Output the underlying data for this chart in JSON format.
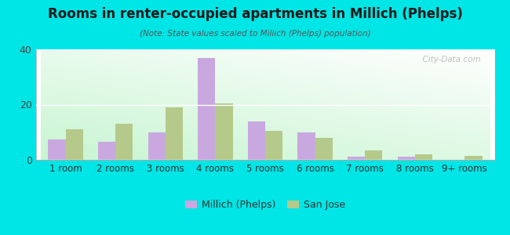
{
  "title": "Rooms in renter-occupied apartments in Millich (Phelps)",
  "subtitle": "(Note: State values scaled to Millich (Phelps) population)",
  "categories": [
    "1 room",
    "2 rooms",
    "3 rooms",
    "4 rooms",
    "5 rooms",
    "6 rooms",
    "7 rooms",
    "8 rooms",
    "9+ rooms"
  ],
  "millich_values": [
    7.5,
    6.5,
    10,
    37,
    14,
    10,
    1,
    1,
    0
  ],
  "sanjose_values": [
    11,
    13,
    19,
    20.5,
    10.5,
    8,
    3.5,
    2,
    1.5
  ],
  "millich_color": "#c9a8e0",
  "sanjose_color": "#b5c98a",
  "background_color": "#00e5e5",
  "ylim": [
    0,
    40
  ],
  "yticks": [
    0,
    20,
    40
  ],
  "bar_width": 0.35,
  "legend_millich": "Millich (Phelps)",
  "legend_sanjose": "San Jose",
  "watermark": "  City-Data.com"
}
